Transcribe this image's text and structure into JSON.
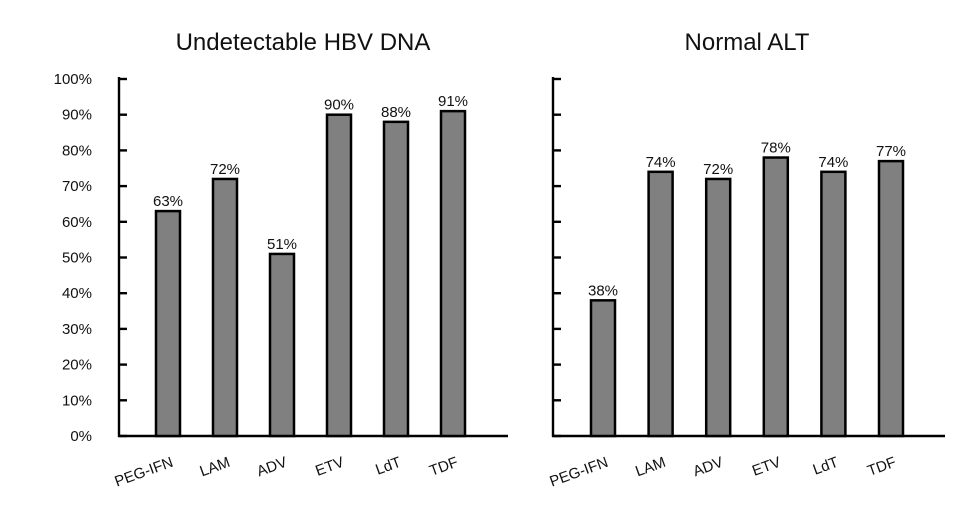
{
  "chart_data": [
    {
      "type": "bar",
      "title": "Undetectable HBV DNA",
      "categories": [
        "PEG-IFN",
        "LAM",
        "ADV",
        "ETV",
        "LdT",
        "TDF"
      ],
      "values": [
        63,
        72,
        51,
        90,
        88,
        91
      ],
      "data_labels": [
        "63%",
        "72%",
        "51%",
        "90%",
        "88%",
        "91%"
      ],
      "ylim": [
        0,
        100
      ],
      "yticks": [
        0,
        10,
        20,
        30,
        40,
        50,
        60,
        70,
        80,
        90,
        100
      ],
      "ytick_labels": [
        "0%",
        "10%",
        "20%",
        "30%",
        "40%",
        "50%",
        "60%",
        "70%",
        "80%",
        "90%",
        "100%"
      ],
      "show_ytick_labels": true,
      "xlabel": "",
      "ylabel": "",
      "grid": false,
      "bar_color": "#808080"
    },
    {
      "type": "bar",
      "title": "Normal ALT",
      "categories": [
        "PEG-IFN",
        "LAM",
        "ADV",
        "ETV",
        "LdT",
        "TDF"
      ],
      "values": [
        38,
        74,
        72,
        78,
        74,
        77
      ],
      "data_labels": [
        "38%",
        "74%",
        "72%",
        "78%",
        "74%",
        "77%"
      ],
      "ylim": [
        0,
        100
      ],
      "yticks": [
        0,
        10,
        20,
        30,
        40,
        50,
        60,
        70,
        80,
        90,
        100
      ],
      "ytick_labels": [],
      "show_ytick_labels": false,
      "xlabel": "",
      "ylabel": "",
      "grid": false,
      "bar_color": "#808080"
    }
  ]
}
